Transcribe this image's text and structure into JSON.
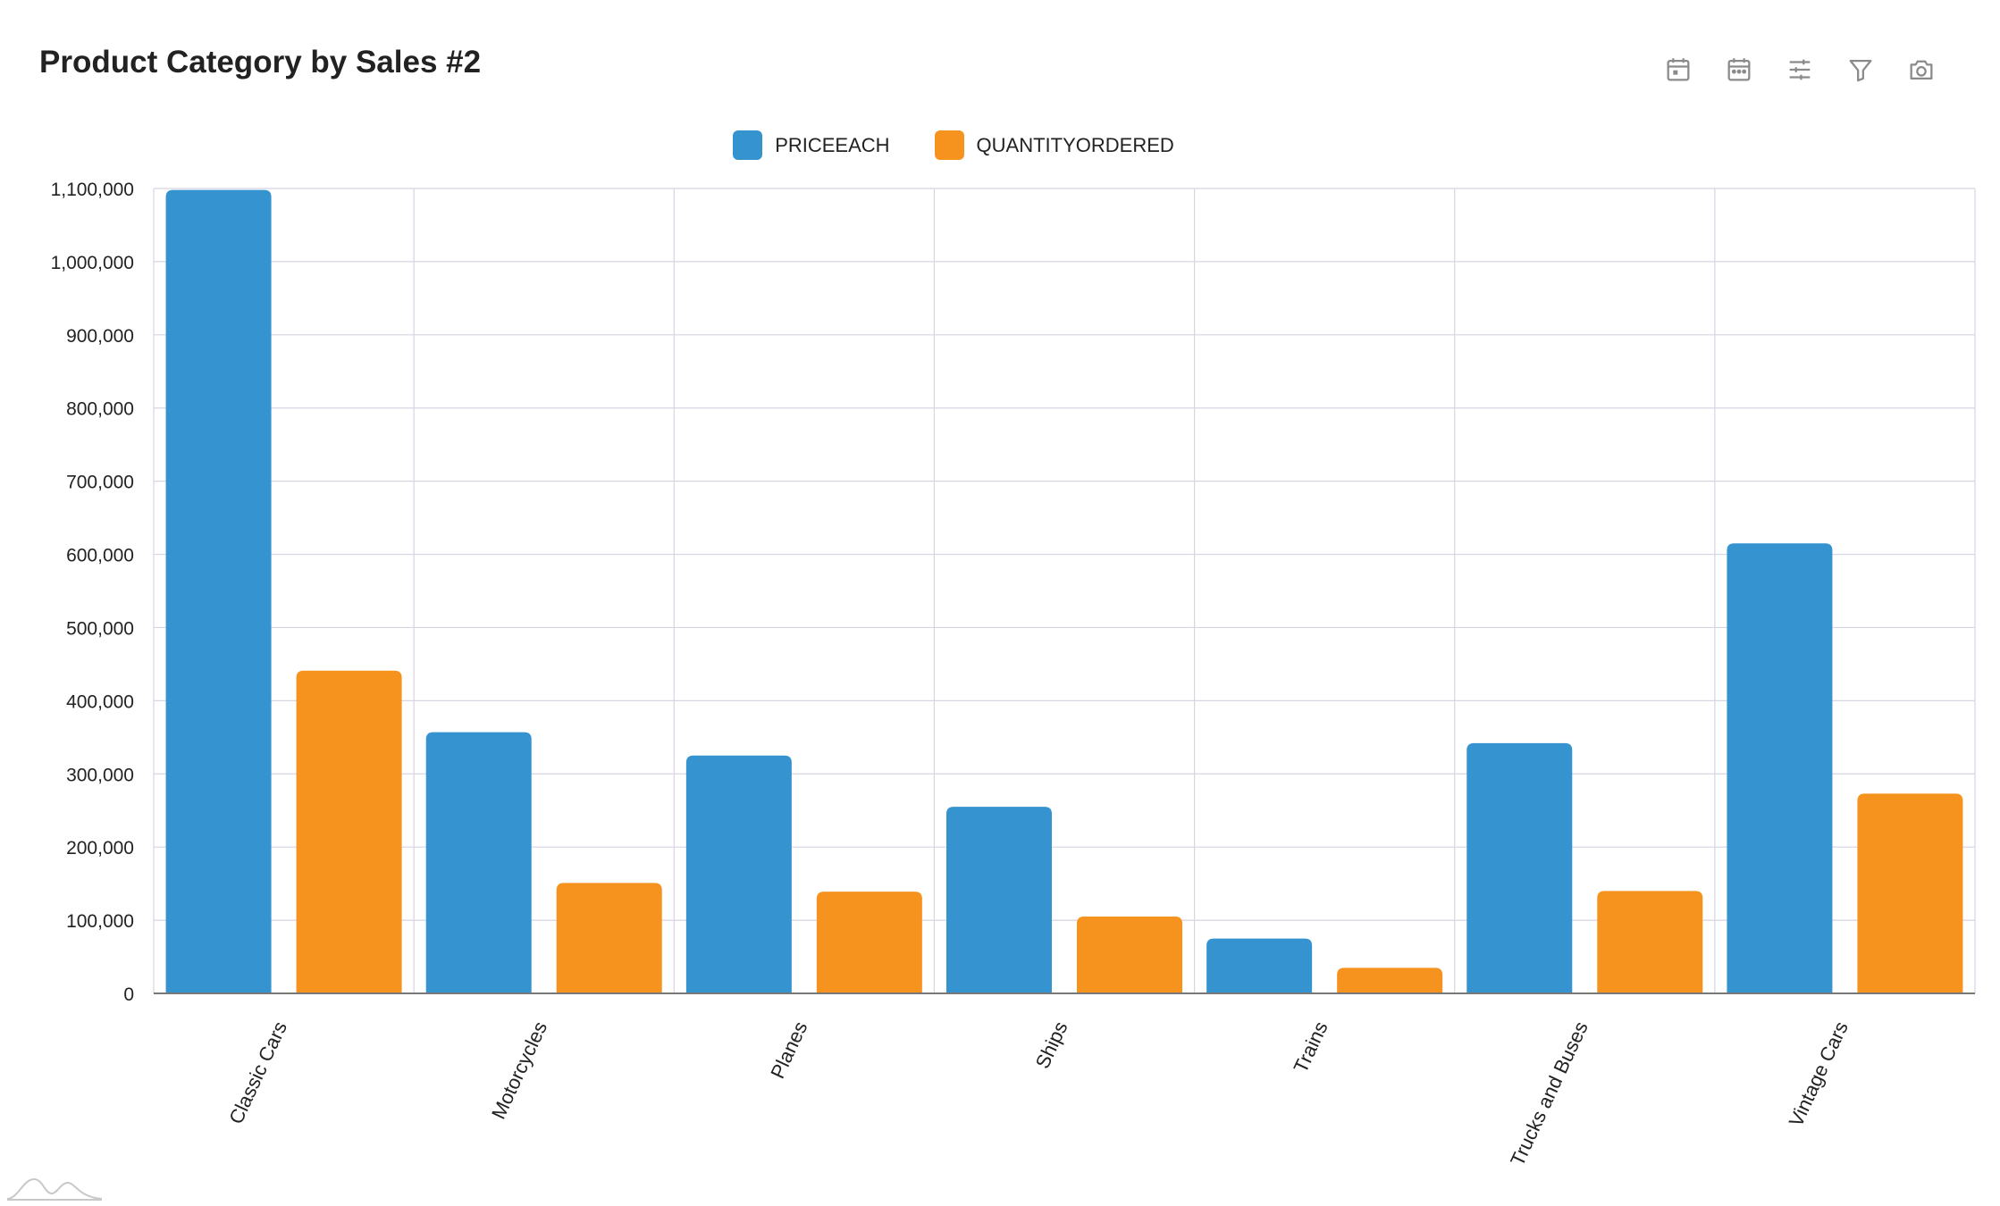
{
  "title": "Product Category by Sales #2",
  "toolbar": {
    "icons": [
      "calendar-icon",
      "calendar-range-icon",
      "sliders-icon",
      "filter-icon",
      "camera-icon"
    ]
  },
  "colors": {
    "series1": "#3593D0",
    "series2": "#F6921E",
    "grid": "#D8D4E2",
    "axis": "#888888"
  },
  "chart_data": {
    "type": "bar",
    "categories": [
      "Classic Cars",
      "Motorcycles",
      "Planes",
      "Ships",
      "Trains",
      "Trucks and Buses",
      "Vintage Cars"
    ],
    "series": [
      {
        "name": "PRICEEACH",
        "values": [
          1098000,
          357000,
          325000,
          255000,
          75000,
          342000,
          615000
        ]
      },
      {
        "name": "QUANTITYORDERED",
        "values": [
          441000,
          151000,
          139000,
          105000,
          35000,
          140000,
          273000
        ]
      }
    ],
    "y_ticks": [
      "0",
      "100,000",
      "200,000",
      "300,000",
      "400,000",
      "500,000",
      "600,000",
      "700,000",
      "800,000",
      "900,000",
      "1,000,000",
      "1,100,000"
    ],
    "ylim": [
      0,
      1100000
    ],
    "grid": true,
    "legend_position": "top-center"
  }
}
